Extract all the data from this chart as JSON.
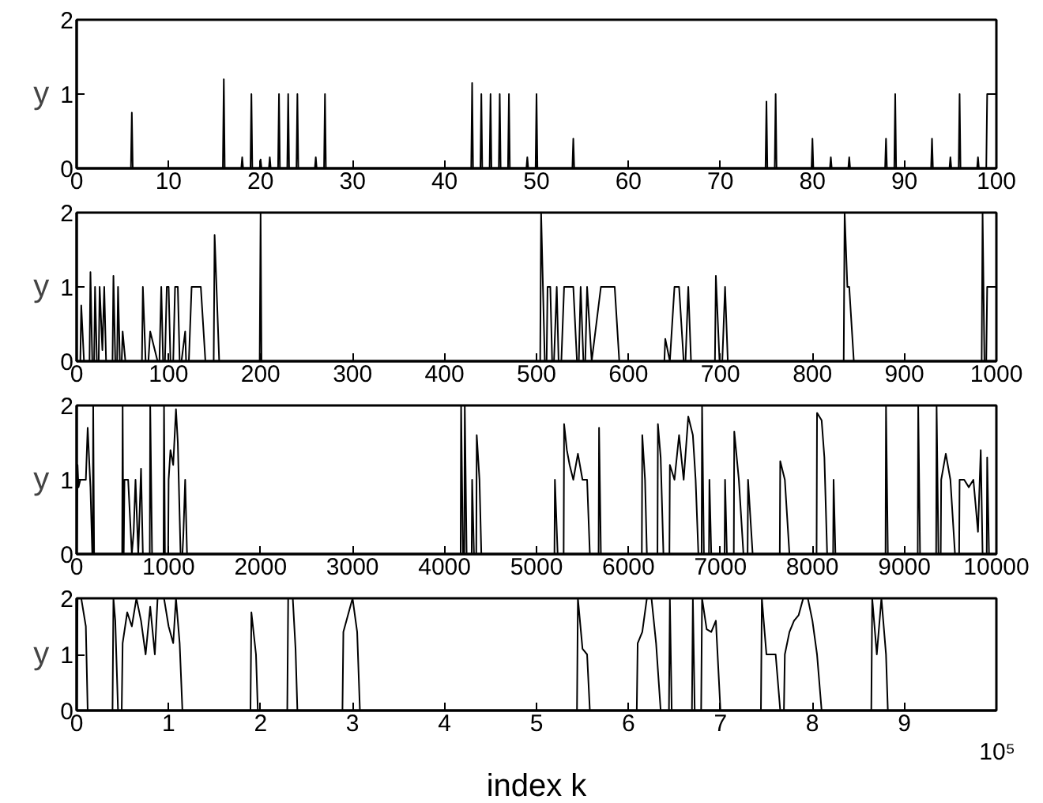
{
  "chart_data": [
    {
      "type": "line",
      "ylabel": "y",
      "color": "#000000",
      "xlim": [
        0,
        100
      ],
      "ylim": [
        0,
        2
      ],
      "xticks": [
        0,
        10,
        20,
        30,
        40,
        50,
        60,
        70,
        80,
        90,
        100
      ],
      "yticks": [
        0,
        1,
        2
      ],
      "x": [
        0,
        5.9,
        6,
        6.1,
        15.9,
        16,
        16.1,
        17.9,
        18,
        18.1,
        18.9,
        19,
        19.1,
        19.9,
        20,
        20.1,
        20.9,
        21,
        21.1,
        21.9,
        22,
        22.1,
        22.9,
        23,
        23.1,
        23.9,
        24,
        24.1,
        25.9,
        26,
        26.1,
        26.9,
        27,
        27.1,
        42.9,
        43,
        43.1,
        43.9,
        44,
        44.1,
        44.9,
        45,
        45.1,
        45.9,
        46,
        46.1,
        46.9,
        47,
        47.1,
        48.9,
        49,
        49.1,
        49.9,
        50,
        50.1,
        53.9,
        54,
        54.1,
        74.9,
        75,
        75.1,
        75.9,
        76,
        76.1,
        79.9,
        80,
        80.1,
        81.9,
        82,
        82.1,
        83.9,
        84,
        84.1,
        87.9,
        88,
        88.1,
        88.9,
        89,
        89.1,
        92.9,
        93,
        93.1,
        94.9,
        95,
        95.1,
        95.9,
        96,
        96.1,
        97.9,
        98,
        98.1,
        98.9,
        99,
        100
      ],
      "values": [
        0,
        0,
        0.75,
        0,
        0,
        1.2,
        0,
        0,
        0.15,
        0,
        0,
        1,
        0,
        0,
        0.12,
        0,
        0,
        0.15,
        0,
        0,
        1,
        0,
        0,
        1,
        0,
        0,
        1,
        0,
        0,
        0.15,
        0,
        0,
        1,
        0,
        0,
        1.15,
        0,
        0,
        1,
        0,
        0,
        1,
        0,
        0,
        1,
        0,
        0,
        1,
        0,
        0,
        0.15,
        0,
        0,
        1,
        0,
        0,
        0.4,
        0,
        0,
        0.9,
        0,
        0,
        1,
        0,
        0,
        0.4,
        0,
        0,
        0.15,
        0,
        0,
        0.15,
        0,
        0,
        0.4,
        0,
        0,
        1,
        0,
        0,
        0.4,
        0,
        0,
        0.15,
        0,
        0,
        1,
        0,
        0,
        0.15,
        0,
        0,
        1,
        1
      ]
    },
    {
      "type": "line",
      "ylabel": "y",
      "color": "#000000",
      "xlim": [
        0,
        1000
      ],
      "ylim": [
        0,
        2
      ],
      "xticks": [
        0,
        100,
        200,
        300,
        400,
        500,
        600,
        700,
        800,
        900,
        1000
      ],
      "yticks": [
        0,
        1,
        2
      ],
      "x": [
        0,
        4,
        5,
        8,
        14,
        15,
        17,
        19,
        20,
        22,
        24,
        25,
        28,
        30,
        32,
        39,
        40,
        42,
        44,
        45,
        47,
        49,
        50,
        53,
        71,
        72,
        75,
        78,
        80,
        85,
        88,
        90,
        92,
        94,
        96,
        98,
        100,
        102,
        105,
        107,
        110,
        112,
        114,
        118,
        119,
        122,
        125,
        135,
        140,
        149,
        150,
        155,
        199,
        200,
        201,
        504,
        505,
        509,
        511,
        512,
        515,
        517,
        519,
        522,
        524,
        527,
        530,
        540,
        544,
        546,
        548,
        551,
        553,
        555,
        560,
        570,
        585,
        590,
        639,
        640,
        645,
        650,
        655,
        660,
        662,
        665,
        668,
        694,
        695,
        699,
        702,
        705,
        708,
        834,
        835,
        838,
        840,
        845,
        984,
        985,
        987,
        989,
        990,
        1000
      ],
      "values": [
        0,
        0,
        0.75,
        0,
        0,
        1.2,
        0,
        0,
        1,
        0,
        0,
        1,
        0.15,
        1,
        0,
        0,
        1.15,
        0,
        0,
        1,
        0,
        0,
        0.4,
        0,
        0,
        1,
        0,
        0,
        0.4,
        0.15,
        0,
        0,
        1,
        0,
        0,
        1,
        1,
        0,
        0,
        1,
        1,
        0,
        0,
        0.4,
        0,
        0,
        1,
        1,
        0,
        0,
        1.7,
        0,
        0,
        2,
        0,
        0,
        2,
        0,
        0,
        1,
        1,
        0,
        0,
        1,
        0,
        0,
        1,
        1,
        0,
        0,
        1,
        0,
        0,
        1,
        0,
        1,
        1,
        0,
        0,
        0.3,
        0,
        1,
        1,
        0,
        0,
        1,
        0,
        0,
        1.15,
        0,
        0,
        1,
        0,
        0,
        2,
        1,
        1,
        0,
        0,
        2,
        0,
        0,
        1,
        1
      ]
    },
    {
      "type": "line",
      "ylabel": "y",
      "color": "#000000",
      "xlim": [
        0,
        10000
      ],
      "ylim": [
        0,
        2
      ],
      "xticks": [
        0,
        1000,
        2000,
        3000,
        4000,
        5000,
        6000,
        7000,
        8000,
        9000,
        10000
      ],
      "yticks": [
        0,
        1,
        2
      ],
      "x": [
        0,
        10,
        20,
        40,
        60,
        80,
        100,
        120,
        150,
        170,
        175,
        180,
        190,
        495,
        500,
        508,
        512,
        520,
        560,
        600,
        620,
        640,
        670,
        700,
        720,
        795,
        800,
        820,
        945,
        950,
        960,
        995,
        1000,
        1020,
        1050,
        1080,
        1100,
        1130,
        1150,
        1160,
        1180,
        1200,
        4175,
        4180,
        4200,
        4215,
        4220,
        4240,
        4295,
        4300,
        4320,
        4345,
        4350,
        4380,
        4400,
        5195,
        5200,
        5230,
        5295,
        5300,
        5330,
        5360,
        5400,
        5450,
        5500,
        5550,
        5580,
        5675,
        5680,
        5700,
        6145,
        6150,
        6180,
        6200,
        6315,
        6320,
        6350,
        6380,
        6445,
        6450,
        6500,
        6550,
        6600,
        6650,
        6700,
        6730,
        6760,
        6795,
        6800,
        6820,
        6875,
        6880,
        6900,
        7045,
        7050,
        7070,
        7145,
        7150,
        7200,
        7250,
        7295,
        7300,
        7350,
        7645,
        7650,
        7700,
        7750,
        8045,
        8050,
        8100,
        8130,
        8160,
        8225,
        8230,
        8250,
        8795,
        8800,
        8820,
        9145,
        9150,
        9170,
        9345,
        9350,
        9370,
        9395,
        9400,
        9450,
        9500,
        9550,
        9595,
        9600,
        9650,
        9700,
        9750,
        9800,
        9830,
        9850,
        9895,
        9900,
        9920
      ],
      "values": [
        0,
        1.2,
        0.9,
        1,
        1,
        1,
        1,
        1.7,
        0.9,
        0,
        0,
        2,
        0,
        0,
        2,
        0,
        0,
        1,
        1,
        0,
        0.3,
        1,
        0,
        1.15,
        0,
        0,
        2,
        0,
        0,
        2,
        0,
        0,
        1,
        1.4,
        1.2,
        1.95,
        1.5,
        0,
        0,
        0.25,
        1,
        0,
        0,
        2,
        0,
        0,
        2,
        0,
        0,
        1,
        0,
        0,
        1.6,
        1,
        0,
        0,
        1,
        0,
        0,
        1.75,
        1.4,
        1.2,
        1,
        1.35,
        1,
        1,
        0,
        0,
        1.7,
        0,
        0,
        1.6,
        1,
        0,
        0,
        1.75,
        1.3,
        0,
        0,
        1.2,
        1,
        1.6,
        1,
        1.85,
        1.6,
        1,
        0,
        0,
        2,
        0,
        0,
        1,
        0,
        0,
        1,
        0,
        0,
        1.65,
        1,
        0,
        0,
        1,
        0,
        0,
        1.25,
        1,
        0,
        0,
        1.9,
        1.8,
        1.3,
        0,
        0,
        1,
        0,
        0,
        2,
        0,
        0,
        2,
        0,
        0,
        2,
        0,
        0,
        1,
        1.35,
        1,
        0,
        0,
        1,
        1,
        0.9,
        1,
        0.3,
        1.4,
        0,
        0,
        1.3,
        0
      ]
    },
    {
      "type": "line",
      "ylabel": "y",
      "xlabel": "index k",
      "color": "#000000",
      "xlim": [
        0,
        10
      ],
      "ylim": [
        0,
        2
      ],
      "xticks": [
        0,
        1,
        2,
        3,
        4,
        5,
        6,
        7,
        8,
        9,
        {
          "value": 10,
          "label": null
        }
      ],
      "yticks": [
        0,
        1,
        2
      ],
      "annotations": [
        "10⁵"
      ],
      "x": [
        0,
        0.01,
        0.05,
        0.1,
        0.12,
        0.39,
        0.4,
        0.42,
        0.45,
        0.49,
        0.5,
        0.55,
        0.6,
        0.65,
        0.7,
        0.75,
        0.8,
        0.85,
        0.88,
        0.95,
        1.0,
        1.05,
        1.08,
        1.12,
        1.15,
        1.89,
        1.9,
        1.95,
        1.97,
        2.29,
        2.3,
        2.35,
        2.38,
        2.4,
        2.89,
        2.9,
        2.95,
        3.0,
        3.05,
        3.08,
        5.44,
        5.45,
        5.5,
        5.55,
        5.58,
        6.09,
        6.1,
        6.15,
        6.2,
        6.25,
        6.3,
        6.35,
        6.44,
        6.45,
        6.47,
        6.69,
        6.7,
        6.72,
        6.79,
        6.8,
        6.85,
        6.9,
        6.95,
        7.0,
        7.44,
        7.45,
        7.5,
        7.6,
        7.65,
        7.69,
        7.7,
        7.75,
        7.8,
        7.85,
        7.9,
        7.95,
        8.0,
        8.05,
        8.1,
        8.64,
        8.65,
        8.7,
        8.75,
        8.8,
        8.82,
        10
      ],
      "values": [
        0,
        2,
        2,
        1.5,
        0,
        0,
        2,
        1.6,
        0,
        0,
        1.2,
        1.75,
        1.5,
        2,
        1.6,
        1,
        1.85,
        1,
        2,
        2,
        1.5,
        1.2,
        2,
        1.2,
        0,
        0,
        1.75,
        1,
        0,
        0,
        2,
        2,
        1.1,
        0,
        0,
        1.4,
        1.7,
        2,
        1.4,
        0,
        0,
        2,
        1.1,
        1,
        0,
        0,
        1.2,
        1.4,
        2,
        2,
        1.2,
        0,
        0,
        2,
        0,
        0,
        2,
        0,
        0,
        2,
        1.45,
        1.4,
        1.6,
        0,
        0,
        2,
        1,
        1,
        0,
        0,
        1,
        1.4,
        1.6,
        1.7,
        2,
        2,
        1.6,
        1,
        0,
        0,
        2,
        1,
        2,
        1,
        0,
        0
      ]
    }
  ]
}
